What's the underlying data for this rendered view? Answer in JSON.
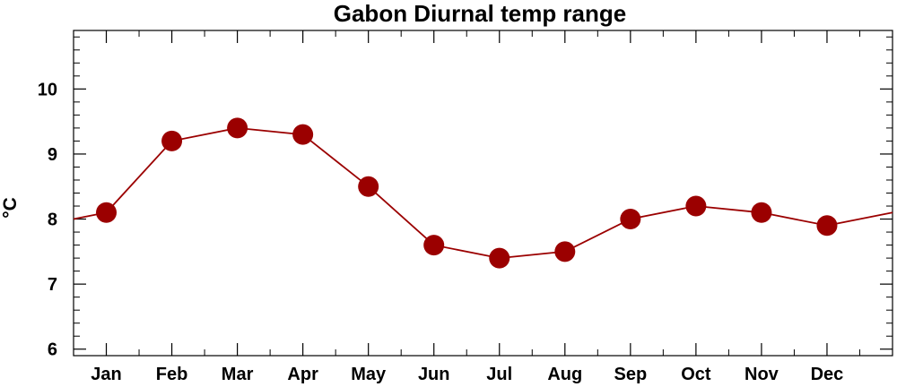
{
  "chart_data": {
    "type": "line",
    "title": "Gabon Diurnal temp range",
    "xlabel": "",
    "ylabel": "°C",
    "categories": [
      "Jan",
      "Feb",
      "Mar",
      "Apr",
      "May",
      "Jun",
      "Jul",
      "Aug",
      "Sep",
      "Oct",
      "Nov",
      "Dec"
    ],
    "series": [
      {
        "values": [
          8.1,
          9.2,
          9.4,
          9.3,
          8.5,
          7.6,
          7.4,
          7.5,
          8.0,
          8.2,
          8.1,
          7.9
        ]
      }
    ],
    "ylim": [
      5.9,
      10.9
    ],
    "yticks": [
      6,
      7,
      8,
      9,
      10
    ],
    "wraps_cyclically": true,
    "grid": false,
    "legend": "none",
    "colors": {
      "series": "#9b0000",
      "axis": "#000000"
    }
  }
}
